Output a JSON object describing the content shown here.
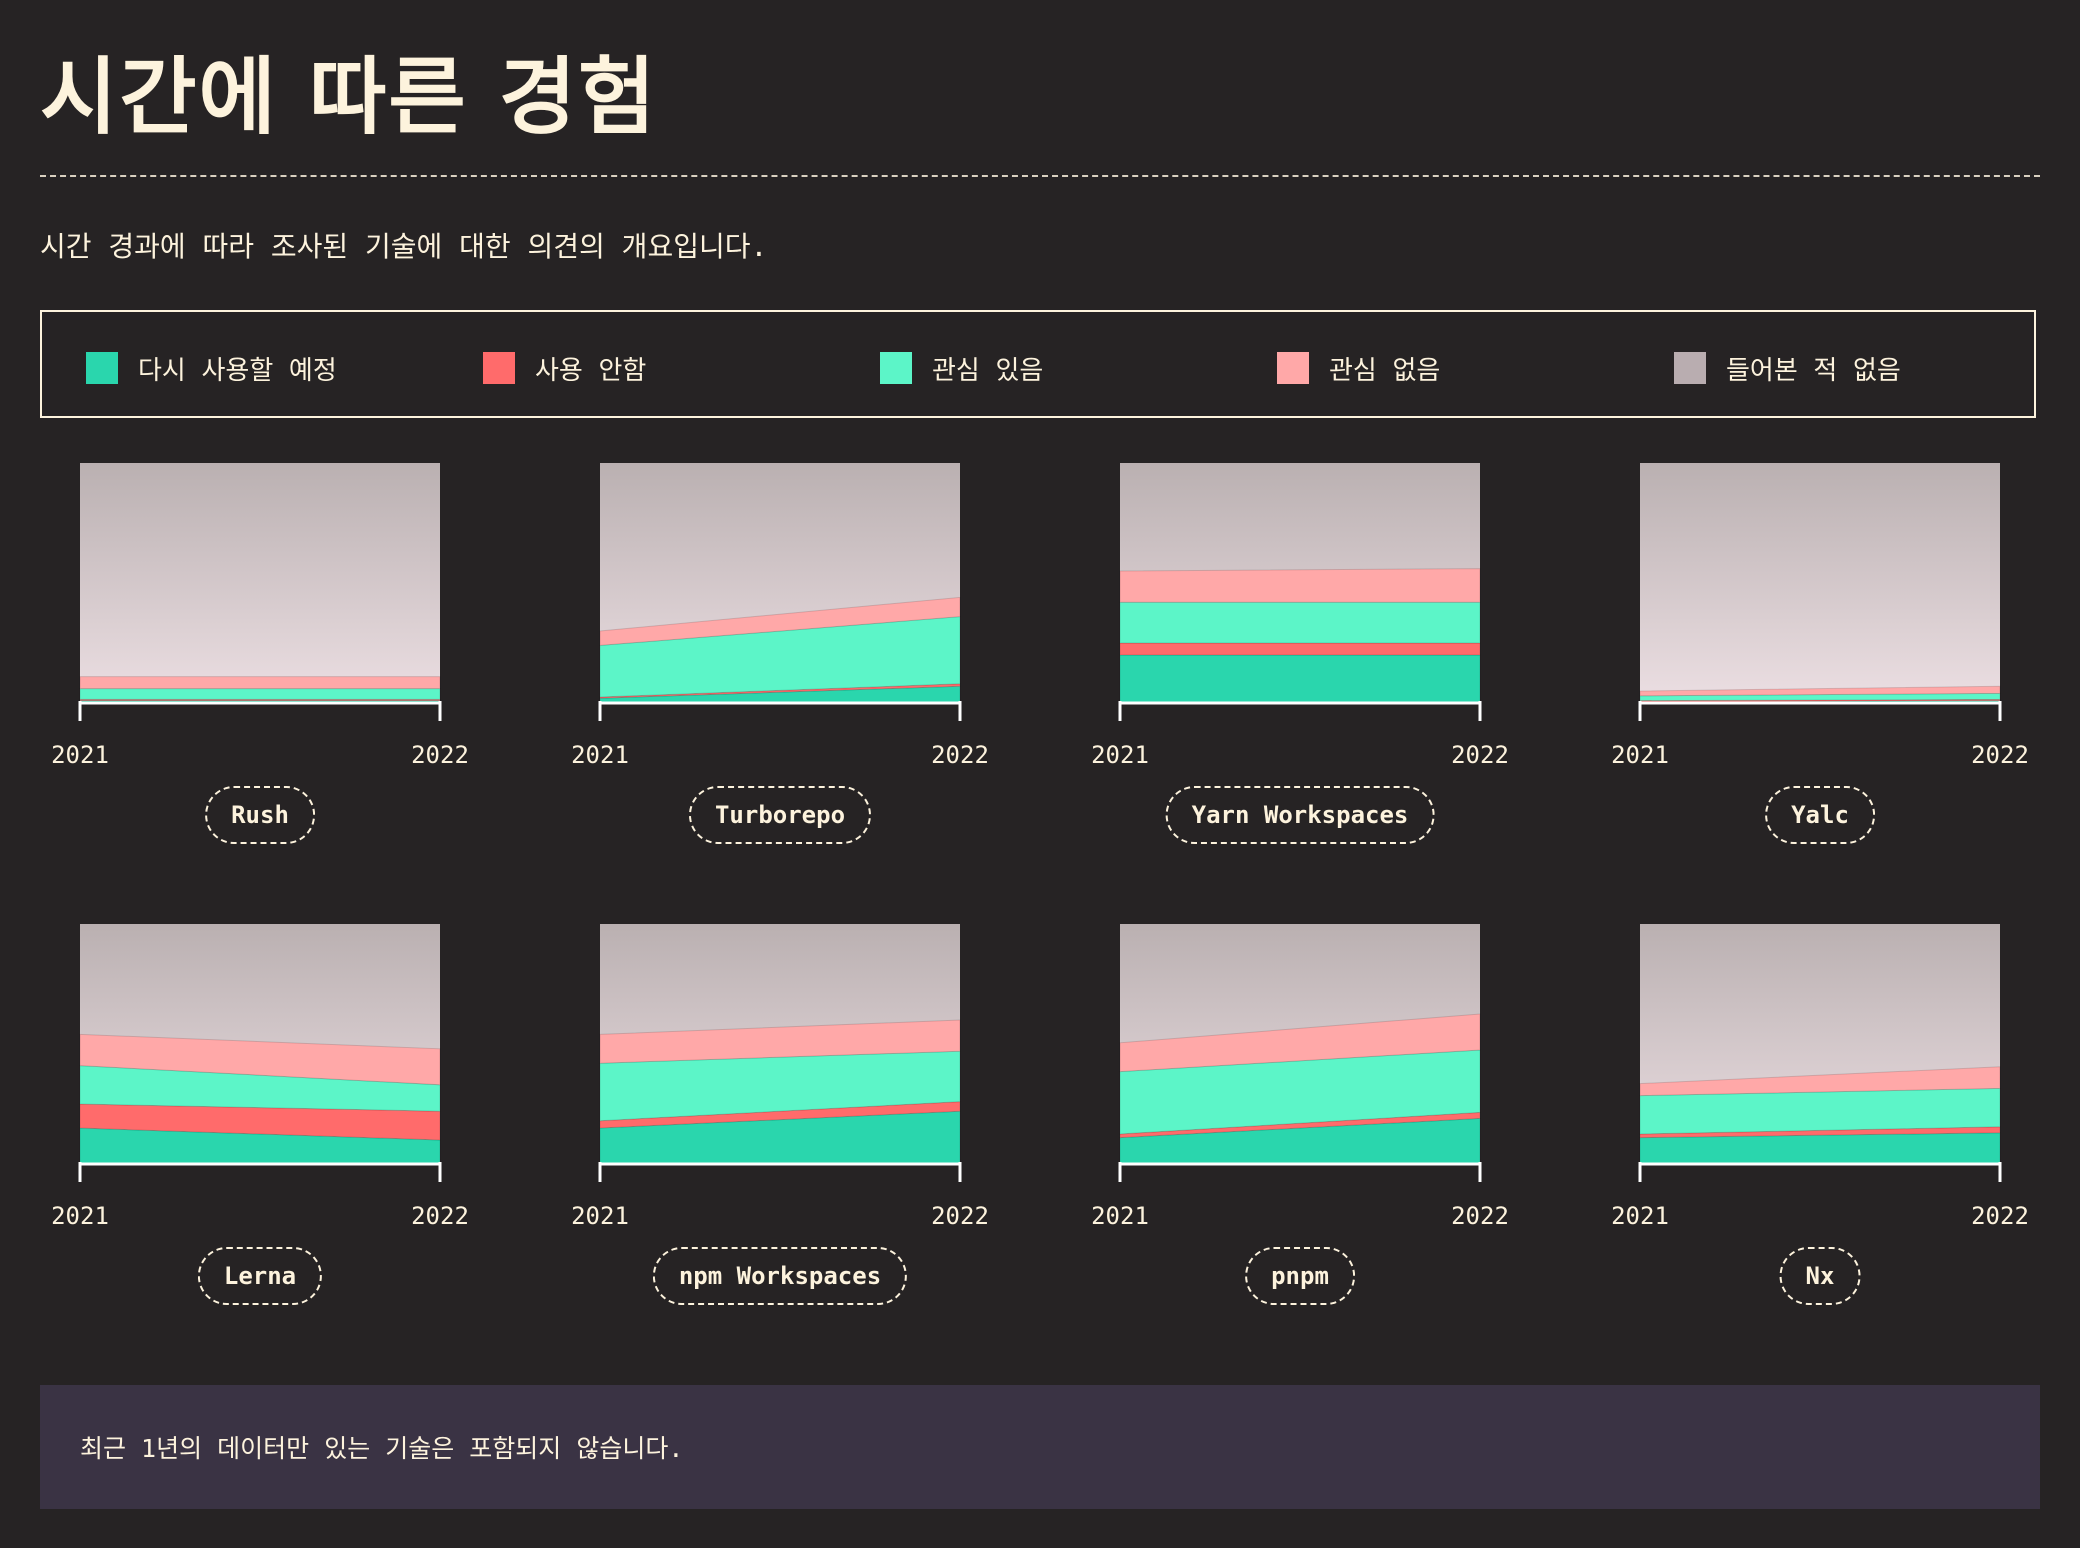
{
  "header": {
    "title": "시간에 따른 경험",
    "subtitle": "시간 경과에 따라 조사된 기술에 대한 의견의 개요입니다."
  },
  "legend": [
    {
      "label": "다시 사용할 예정",
      "color": "#2ad6ad"
    },
    {
      "label": "사용 안함",
      "color": "#ff6b6b"
    },
    {
      "label": "관심 있음",
      "color": "#5cf5c8"
    },
    {
      "label": "관심 없음",
      "color": "#ffa8a8"
    },
    {
      "label": "들어본 적 없음",
      "color": "#b9adb0"
    }
  ],
  "footer": {
    "note": "최근 1년의 데이터만 있는 기술은 포함되지 않습니다."
  },
  "chart_data": [
    {
      "type": "area",
      "title": "Rush",
      "x": [
        "2021",
        "2022"
      ],
      "ylim": [
        0,
        100
      ],
      "series": [
        {
          "name": "다시 사용할 예정",
          "values": [
            1,
            1
          ]
        },
        {
          "name": "사용 안함",
          "values": [
            0.5,
            0.5
          ]
        },
        {
          "name": "관심 있음",
          "values": [
            4.5,
            4.5
          ]
        },
        {
          "name": "관심 없음",
          "values": [
            5,
            5
          ]
        },
        {
          "name": "들어본 적 없음",
          "values": [
            89,
            89
          ]
        }
      ]
    },
    {
      "type": "area",
      "title": "Turborepo",
      "x": [
        "2021",
        "2022"
      ],
      "ylim": [
        0,
        100
      ],
      "series": [
        {
          "name": "다시 사용할 예정",
          "values": [
            2,
            7
          ]
        },
        {
          "name": "사용 안함",
          "values": [
            0.5,
            1
          ]
        },
        {
          "name": "관심 있음",
          "values": [
            21.5,
            28
          ]
        },
        {
          "name": "관심 없음",
          "values": [
            6,
            8
          ]
        },
        {
          "name": "들어본 적 없음",
          "values": [
            70,
            56
          ]
        }
      ]
    },
    {
      "type": "area",
      "title": "Yarn Workspaces",
      "x": [
        "2021",
        "2022"
      ],
      "ylim": [
        0,
        100
      ],
      "series": [
        {
          "name": "다시 사용할 예정",
          "values": [
            20,
            20
          ]
        },
        {
          "name": "사용 안함",
          "values": [
            5,
            5
          ]
        },
        {
          "name": "관심 있음",
          "values": [
            17,
            17
          ]
        },
        {
          "name": "관심 없음",
          "values": [
            13,
            14
          ]
        },
        {
          "name": "들어본 적 없음",
          "values": [
            45,
            44
          ]
        }
      ]
    },
    {
      "type": "area",
      "title": "Yalc",
      "x": [
        "2021",
        "2022"
      ],
      "ylim": [
        0,
        100
      ],
      "series": [
        {
          "name": "다시 사용할 예정",
          "values": [
            0.5,
            1
          ]
        },
        {
          "name": "사용 안함",
          "values": [
            0.5,
            0.5
          ]
        },
        {
          "name": "관심 있음",
          "values": [
            2,
            2.5
          ]
        },
        {
          "name": "관심 없음",
          "values": [
            2,
            3
          ]
        },
        {
          "name": "들어본 적 없음",
          "values": [
            95,
            93
          ]
        }
      ]
    },
    {
      "type": "area",
      "title": "Lerna",
      "x": [
        "2021",
        "2022"
      ],
      "ylim": [
        0,
        100
      ],
      "series": [
        {
          "name": "다시 사용할 예정",
          "values": [
            15,
            10
          ]
        },
        {
          "name": "사용 안함",
          "values": [
            10,
            12
          ]
        },
        {
          "name": "관심 있음",
          "values": [
            16,
            11
          ]
        },
        {
          "name": "관심 없음",
          "values": [
            13,
            15
          ]
        },
        {
          "name": "들어본 적 없음",
          "values": [
            46,
            52
          ]
        }
      ]
    },
    {
      "type": "area",
      "title": "npm Workspaces",
      "x": [
        "2021",
        "2022"
      ],
      "ylim": [
        0,
        100
      ],
      "series": [
        {
          "name": "다시 사용할 예정",
          "values": [
            15,
            22
          ]
        },
        {
          "name": "사용 안함",
          "values": [
            3,
            4
          ]
        },
        {
          "name": "관심 있음",
          "values": [
            24,
            21
          ]
        },
        {
          "name": "관심 없음",
          "values": [
            12,
            13
          ]
        },
        {
          "name": "들어본 적 없음",
          "values": [
            46,
            40
          ]
        }
      ]
    },
    {
      "type": "area",
      "title": "pnpm",
      "x": [
        "2021",
        "2022"
      ],
      "ylim": [
        0,
        100
      ],
      "series": [
        {
          "name": "다시 사용할 예정",
          "values": [
            11,
            19
          ]
        },
        {
          "name": "사용 안함",
          "values": [
            1.5,
            2.5
          ]
        },
        {
          "name": "관심 있음",
          "values": [
            26,
            26
          ]
        },
        {
          "name": "관심 없음",
          "values": [
            12,
            15
          ]
        },
        {
          "name": "들어본 적 없음",
          "values": [
            49.5,
            37.5
          ]
        }
      ]
    },
    {
      "type": "area",
      "title": "Nx",
      "x": [
        "2021",
        "2022"
      ],
      "ylim": [
        0,
        100
      ],
      "series": [
        {
          "name": "다시 사용할 예정",
          "values": [
            11,
            13
          ]
        },
        {
          "name": "사용 안함",
          "values": [
            1.5,
            2.5
          ]
        },
        {
          "name": "관심 있음",
          "values": [
            16,
            16
          ]
        },
        {
          "name": "관심 없음",
          "values": [
            5,
            9
          ]
        },
        {
          "name": "들어본 적 없음",
          "values": [
            66.5,
            59.5
          ]
        }
      ]
    }
  ]
}
